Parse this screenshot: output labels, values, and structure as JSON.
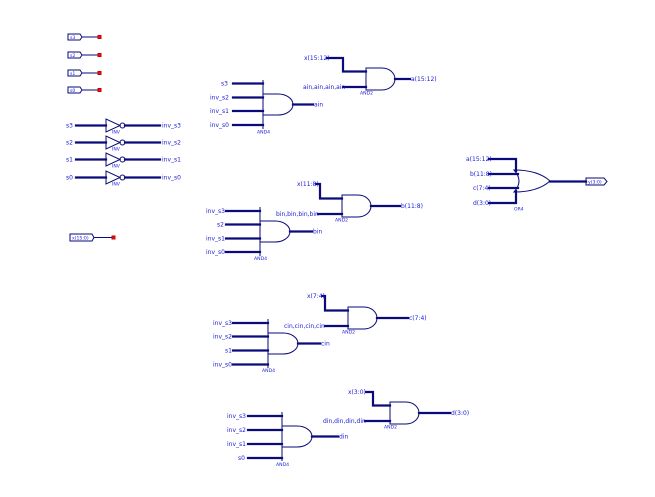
{
  "ports": {
    "inputs": [
      "s3",
      "s2",
      "s1",
      "s0"
    ],
    "bus_input": "x(15:0)",
    "output": "y(3:0)"
  },
  "inverters": [
    {
      "in": "s3",
      "out": "inv_s3",
      "type": "INV"
    },
    {
      "in": "s2",
      "out": "inv_s2",
      "type": "INV"
    },
    {
      "in": "s1",
      "out": "inv_s1",
      "type": "INV"
    },
    {
      "in": "s0",
      "out": "inv_s0",
      "type": "INV"
    }
  ],
  "and4_gates": [
    {
      "inputs": [
        "s3",
        "inv_s2",
        "inv_s1",
        "inv_s0"
      ],
      "out": "ain",
      "type": "AND4"
    },
    {
      "inputs": [
        "inv_s3",
        "s2",
        "inv_s1",
        "inv_s0"
      ],
      "out": "bin",
      "type": "AND4"
    },
    {
      "inputs": [
        "inv_s3",
        "inv_s2",
        "s1",
        "inv_s0"
      ],
      "out": "cin",
      "type": "AND4"
    },
    {
      "inputs": [
        "inv_s3",
        "inv_s2",
        "inv_s1",
        "s0"
      ],
      "out": "din",
      "type": "AND4"
    }
  ],
  "and2_gates": [
    {
      "bus_in": "x(15:12)",
      "sel_in": "ain,ain,ain,ain",
      "out": "a(15:12)",
      "type": "AND2"
    },
    {
      "bus_in": "x(11:8)",
      "sel_in": "bin,bin,bin,bin",
      "out": "b(11:8)",
      "type": "AND2"
    },
    {
      "bus_in": "x(7:4)",
      "sel_in": "cin,cin,cin,cin",
      "out": "c(7:4)",
      "type": "AND2"
    },
    {
      "bus_in": "x(3:0)",
      "sel_in": "din,din,din,din",
      "out": "d(3:0)",
      "type": "AND2"
    }
  ],
  "or4_gate": {
    "inputs": [
      "a(15:12)",
      "b(11:8)",
      "c(7:4)",
      "d(3:0)"
    ],
    "out": "y(3:0)",
    "type": "OR4"
  }
}
